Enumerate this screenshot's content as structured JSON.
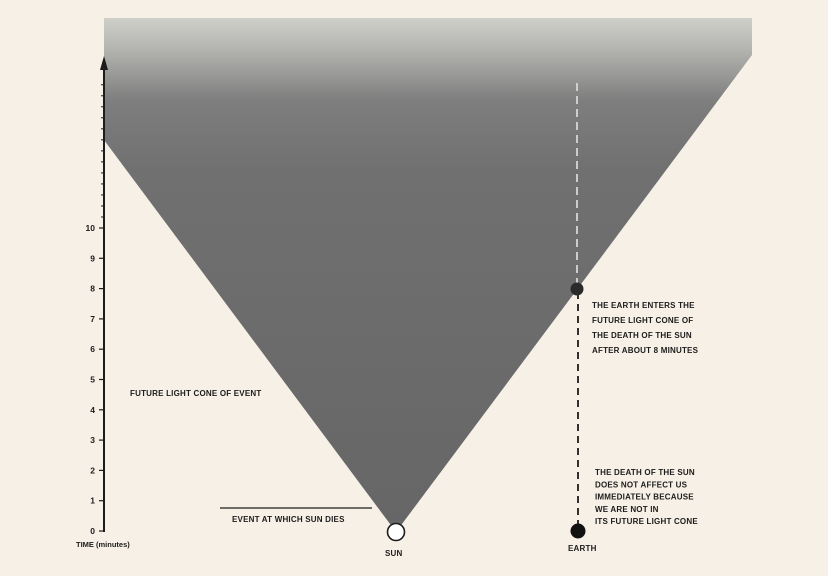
{
  "diagram": {
    "axis": {
      "label": "TIME (minutes)",
      "ticks": [
        "0",
        "1",
        "2",
        "3",
        "4",
        "5",
        "6",
        "7",
        "8",
        "9",
        "10"
      ]
    },
    "cone_label": "FUTURE LIGHT CONE OF EVENT",
    "event_label": "EVENT AT WHICH SUN DIES",
    "sun_label": "SUN",
    "earth_label": "EARTH",
    "enter_text": [
      "THE EARTH ENTERS THE",
      "FUTURE LIGHT CONE OF",
      "THE DEATH OF THE SUN",
      "AFTER ABOUT 8 MINUTES"
    ],
    "not_affect_text": [
      "THE DEATH OF THE SUN",
      "DOES NOT AFFECT US",
      "IMMEDIATELY BECAUSE",
      "WE ARE NOT IN",
      "ITS FUTURE LIGHT CONE"
    ],
    "colors": {
      "background": "#f6f0e6",
      "cone_dark": "#6e6e6e",
      "cone_top": "#c9c9c4",
      "ink": "#1c1c1c"
    }
  }
}
